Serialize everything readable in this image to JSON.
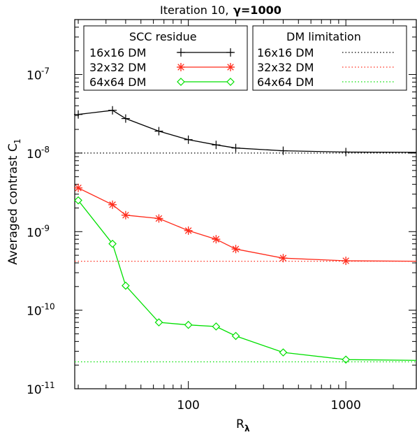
{
  "chart_data": {
    "type": "line",
    "title": "Iteration 10,",
    "title_gamma": "γ=1000",
    "xlabel": "R",
    "xlabel_sub": "λ",
    "ylabel": "Averaged contrast C",
    "ylabel_sub": "1",
    "xscale": "log",
    "yscale": "log",
    "xlim": [
      19,
      2800
    ],
    "ylim": [
      1e-11,
      5e-07
    ],
    "x_ticks": [
      100,
      1000
    ],
    "x_tick_labels": [
      "100",
      "1000"
    ],
    "y_ticks": [
      1e-11,
      1e-10,
      1e-09,
      1e-08,
      1e-07
    ],
    "y_tick_labels": [
      {
        "base": "10",
        "exp": "-11"
      },
      {
        "base": "10",
        "exp": "-10"
      },
      {
        "base": "10",
        "exp": "-9"
      },
      {
        "base": "10",
        "exp": "-8"
      },
      {
        "base": "10",
        "exp": "-7"
      }
    ],
    "grid": false,
    "legend_titles": [
      "SCC residue",
      "DM limitation"
    ],
    "legend_placement": "top",
    "series": [
      {
        "name": "16x16  DM",
        "group": "SCC residue",
        "color": "#000000",
        "marker": "plus",
        "x": [
          20,
          33,
          40,
          65,
          100,
          150,
          200,
          400,
          1000,
          2800
        ],
        "y": [
          3.1e-08,
          3.5e-08,
          2.75e-08,
          1.9e-08,
          1.48e-08,
          1.27e-08,
          1.16e-08,
          1.07e-08,
          1.03e-08,
          1.02e-08
        ]
      },
      {
        "name": "32x32  DM",
        "group": "SCC residue",
        "color": "#ff2a1a",
        "marker": "asterisk",
        "x": [
          20,
          33,
          40,
          65,
          100,
          150,
          200,
          400,
          1000,
          2800
        ],
        "y": [
          3.6e-09,
          2.2e-09,
          1.62e-09,
          1.47e-09,
          1.03e-09,
          8e-10,
          6e-10,
          4.6e-10,
          4.25e-10,
          4.2e-10
        ]
      },
      {
        "name": "64x64  DM",
        "group": "SCC residue",
        "color": "#00e000",
        "marker": "diamond",
        "x": [
          20,
          33,
          40,
          65,
          100,
          150,
          200,
          400,
          1000,
          2800
        ],
        "y": [
          2.5e-09,
          7e-10,
          2.05e-10,
          7e-11,
          6.5e-11,
          6.2e-11,
          4.7e-11,
          2.9e-11,
          2.35e-11,
          2.3e-11
        ]
      },
      {
        "name": "16x16  DM",
        "group": "DM limitation",
        "color": "#000000",
        "dash": "dotted",
        "constant": 1e-08
      },
      {
        "name": "32x32  DM",
        "group": "DM limitation",
        "color": "#ff2a1a",
        "dash": "dotted",
        "constant": 4.2e-10
      },
      {
        "name": "64x64  DM",
        "group": "DM limitation",
        "color": "#00e000",
        "dash": "dotted",
        "constant": 2.2e-11
      }
    ]
  }
}
